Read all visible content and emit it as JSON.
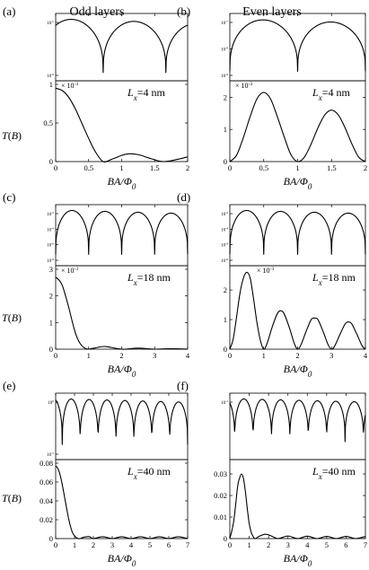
{
  "figure": {
    "col_titles": [
      "Odd layers",
      "Even layers"
    ],
    "y_label": "T(B)",
    "x_label": "BA/Φ0"
  },
  "chart_data": [
    {
      "panel": "(a)",
      "type": "line",
      "column": "Odd layers",
      "annotation": "Lx=4 nm",
      "multiplier": "× 10^-3",
      "x_ticks": [
        0,
        0.5,
        1,
        1.5,
        2
      ],
      "xlim": [
        0,
        2
      ],
      "ylim": [
        0,
        1
      ],
      "y_ticks": [
        0,
        0.5,
        1
      ],
      "log_ticks": [
        "10^-5",
        "10^-6"
      ],
      "series": [
        {
          "x": [
            0,
            0.1,
            0.2,
            0.3,
            0.4,
            0.5,
            0.6,
            0.72,
            0.85,
            1.0,
            1.1,
            1.25,
            1.4,
            1.55,
            1.65,
            1.8,
            2.0
          ],
          "y": [
            0.95,
            0.92,
            0.83,
            0.68,
            0.49,
            0.3,
            0.13,
            0.0,
            0.03,
            0.08,
            0.1,
            0.09,
            0.05,
            0.01,
            0.0,
            0.02,
            0.06
          ]
        }
      ]
    },
    {
      "panel": "(b)",
      "type": "line",
      "column": "Even layers",
      "annotation": "Lx=4 nm",
      "multiplier": "× 10^-3",
      "x_ticks": [
        0,
        0.5,
        1,
        1.5,
        2
      ],
      "xlim": [
        0,
        2
      ],
      "ylim": [
        0,
        2.4
      ],
      "y_ticks": [
        0,
        1,
        2
      ],
      "log_ticks": [
        "10^-7",
        "10^-8",
        "10^-9"
      ],
      "series": [
        {
          "x": [
            0,
            0.1,
            0.2,
            0.3,
            0.4,
            0.5,
            0.6,
            0.7,
            0.8,
            0.9,
            1.0,
            1.1,
            1.2,
            1.3,
            1.4,
            1.5,
            1.6,
            1.7,
            1.8,
            1.9,
            2.0
          ],
          "y": [
            0.0,
            0.2,
            0.75,
            1.4,
            1.95,
            2.15,
            1.95,
            1.4,
            0.78,
            0.22,
            0.0,
            0.14,
            0.55,
            1.05,
            1.45,
            1.6,
            1.45,
            1.05,
            0.55,
            0.14,
            0.0
          ]
        }
      ]
    },
    {
      "panel": "(c)",
      "type": "line",
      "column": "Odd layers",
      "annotation": "Lx=18 nm",
      "multiplier": "× 10^-3",
      "x_ticks": [
        0,
        1,
        2,
        3,
        4
      ],
      "xlim": [
        0,
        4
      ],
      "ylim": [
        0,
        3
      ],
      "y_ticks": [
        0,
        1,
        2,
        3
      ],
      "log_ticks": [
        "10^-2",
        "10^-4",
        "10^-6",
        "10^-8"
      ],
      "series": [
        {
          "x": [
            0,
            0.1,
            0.2,
            0.3,
            0.4,
            0.5,
            0.6,
            0.7,
            0.8,
            0.9,
            1.0,
            1.2,
            1.5,
            2.0,
            2.5,
            3.0,
            3.5,
            4.0
          ],
          "y": [
            2.7,
            2.6,
            2.4,
            2.0,
            1.55,
            1.05,
            0.6,
            0.3,
            0.12,
            0.03,
            0.0,
            0.05,
            0.1,
            0.0,
            0.04,
            0.0,
            0.02,
            0.0
          ]
        }
      ]
    },
    {
      "panel": "(d)",
      "type": "line",
      "column": "Even layers",
      "annotation": "Lx=18 nm",
      "multiplier": "× 10^-3",
      "x_ticks": [
        0,
        1,
        2,
        3,
        4
      ],
      "xlim": [
        0,
        4
      ],
      "ylim": [
        0,
        2.7
      ],
      "y_ticks": [
        0,
        1,
        2
      ],
      "log_ticks": [
        "10^-2",
        "10^-4",
        "10^-6",
        "10^-8"
      ],
      "series": [
        {
          "x": [
            0,
            0.1,
            0.2,
            0.3,
            0.4,
            0.5,
            0.6,
            0.7,
            0.8,
            0.9,
            1.0,
            1.1,
            1.25,
            1.4,
            1.5,
            1.6,
            1.75,
            1.9,
            2.0,
            2.1,
            2.25,
            2.4,
            2.5,
            2.6,
            2.75,
            2.9,
            3.0,
            3.1,
            3.25,
            3.4,
            3.5,
            3.6,
            3.75,
            3.9,
            4.0
          ],
          "y": [
            0.0,
            0.35,
            1.1,
            1.9,
            2.4,
            2.6,
            2.4,
            1.7,
            0.9,
            0.3,
            0.0,
            0.2,
            0.75,
            1.2,
            1.3,
            1.2,
            0.75,
            0.2,
            0.0,
            0.15,
            0.6,
            1.0,
            1.05,
            1.0,
            0.6,
            0.15,
            0.0,
            0.12,
            0.5,
            0.85,
            0.92,
            0.85,
            0.5,
            0.12,
            0.0
          ]
        }
      ]
    },
    {
      "panel": "(e)",
      "type": "line",
      "column": "Odd layers",
      "annotation": "Lx=40 nm",
      "multiplier": "",
      "x_ticks": [
        0,
        1,
        2,
        3,
        4,
        5,
        6,
        7
      ],
      "xlim": [
        0,
        7
      ],
      "ylim": [
        0,
        0.08
      ],
      "y_ticks": [
        0,
        0.02,
        0.04,
        0.06,
        0.08
      ],
      "log_ticks": [
        "10^0",
        "10^-5"
      ],
      "series": [
        {
          "x": [
            0,
            0.1,
            0.2,
            0.3,
            0.4,
            0.5,
            0.6,
            0.7,
            0.8,
            0.9,
            1.0,
            1.1,
            1.2,
            1.3,
            1.5,
            1.8,
            2.0,
            2.5,
            3.0,
            3.5,
            4.0,
            4.5,
            5.0,
            5.5,
            6.0,
            6.5,
            7.0
          ],
          "y": [
            0.077,
            0.075,
            0.07,
            0.062,
            0.052,
            0.041,
            0.03,
            0.02,
            0.012,
            0.006,
            0.003,
            0.001,
            0.0,
            0.0,
            0.0015,
            0.002,
            0.0,
            0.002,
            0.0,
            0.002,
            0.0,
            0.002,
            0.0,
            0.002,
            0.0,
            0.002,
            0.0
          ]
        }
      ]
    },
    {
      "panel": "(f)",
      "type": "line",
      "column": "Even layers",
      "annotation": "Lx=40 nm",
      "multiplier": "",
      "x_ticks": [
        0,
        1,
        2,
        3,
        4,
        5,
        6,
        7
      ],
      "xlim": [
        0,
        7
      ],
      "ylim": [
        0,
        0.035
      ],
      "y_ticks": [
        0,
        0.01,
        0.02,
        0.03
      ],
      "log_ticks": [
        "10^-1"
      ],
      "series": [
        {
          "x": [
            0,
            0.2,
            0.4,
            0.5,
            0.6,
            0.7,
            0.8,
            0.9,
            1.0,
            1.1,
            1.2,
            1.3,
            1.5,
            1.8,
            2.0,
            2.2,
            2.5,
            3.0,
            3.5,
            4.0,
            4.5,
            5.0,
            5.5,
            6.0,
            6.5,
            7.0
          ],
          "y": [
            0.0,
            0.008,
            0.024,
            0.028,
            0.03,
            0.028,
            0.022,
            0.014,
            0.007,
            0.003,
            0.001,
            0.0,
            0.001,
            0.002,
            0.0017,
            0.001,
            0.0,
            0.0012,
            0.0,
            0.0011,
            0.0,
            0.001,
            0.0,
            0.001,
            0.0,
            0.001
          ]
        }
      ]
    }
  ]
}
